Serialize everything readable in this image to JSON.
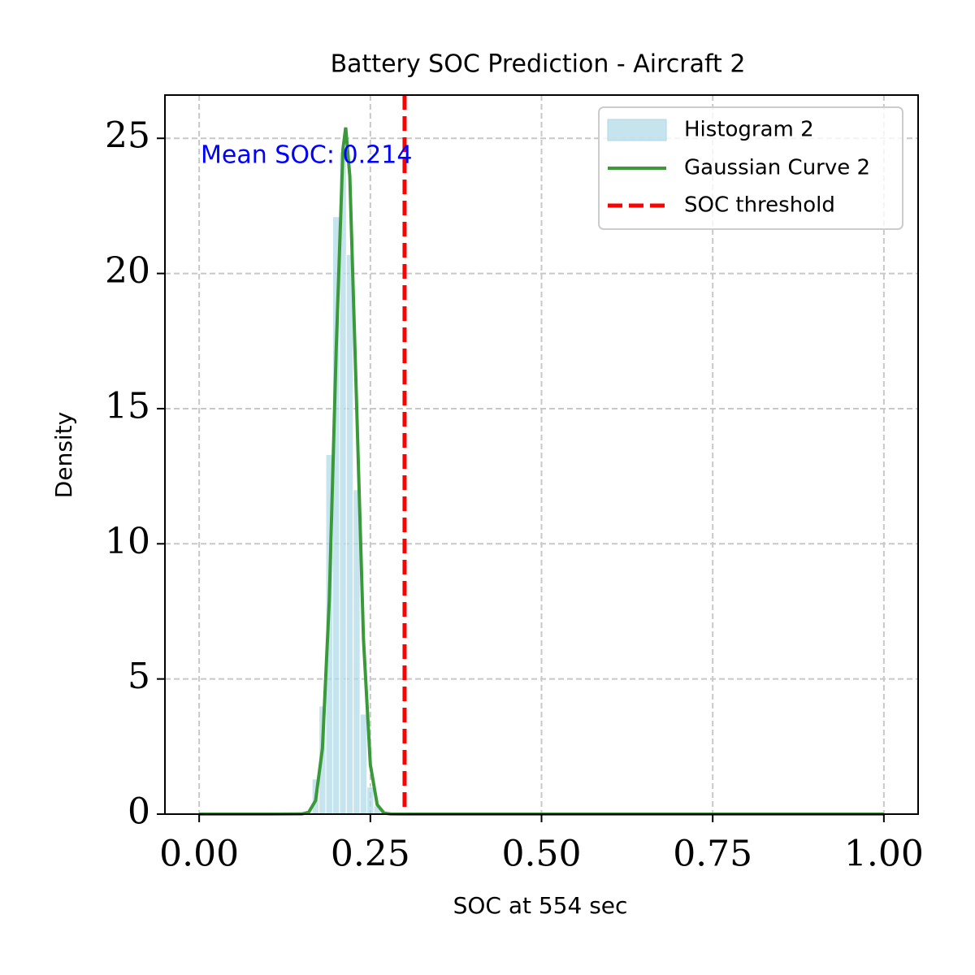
{
  "chart_data": {
    "type": "histogram",
    "title": "Battery SOC Prediction - Aircraft 2",
    "x_label": "SOC at 554 sec",
    "y_label": "Density",
    "annotation": "Mean SOC: 0.214",
    "annotation_color": "#0000ff",
    "xlim": [
      -0.05,
      1.05
    ],
    "ylim": [
      0,
      26.6
    ],
    "xticks": [
      {
        "value": 0,
        "label": "0.00"
      },
      {
        "value": 0.25,
        "label": "0.25"
      },
      {
        "value": 0.5,
        "label": "0.50"
      },
      {
        "value": 0.75,
        "label": "0.75"
      },
      {
        "value": 1,
        "label": "1.00"
      }
    ],
    "yticks": [
      0,
      5,
      10,
      15,
      20,
      25
    ],
    "grid": true,
    "legend": "upper right",
    "histogram": {
      "name": "Histogram 2",
      "color": "#add8e6",
      "bins": [
        0.165,
        0.175,
        0.185,
        0.195,
        0.205,
        0.215,
        0.225,
        0.235,
        0.245,
        0.255,
        0.265,
        0.275
      ],
      "values": [
        1.3,
        4.0,
        13.3,
        22.1,
        24.5,
        20.7,
        12.0,
        3.7,
        1.0,
        0.3,
        0.1
      ]
    },
    "curve": {
      "name": "Gaussian Curve 2",
      "color": "#3a9a3a",
      "x": [
        0,
        0.1,
        0.15,
        0.16,
        0.17,
        0.18,
        0.19,
        0.2,
        0.21,
        0.214,
        0.22,
        0.23,
        0.24,
        0.25,
        0.26,
        0.27,
        0.28,
        0.3,
        1
      ],
      "values": [
        0,
        0,
        0.006,
        0.07,
        0.5,
        2.43,
        7.9,
        17.1,
        24.6,
        25.4,
        23.6,
        15.1,
        6.45,
        1.83,
        0.35,
        0.04,
        0.003,
        0,
        0
      ]
    },
    "threshold": {
      "name": "SOC threshold",
      "value": 0.3,
      "color": "#ff0000"
    }
  }
}
